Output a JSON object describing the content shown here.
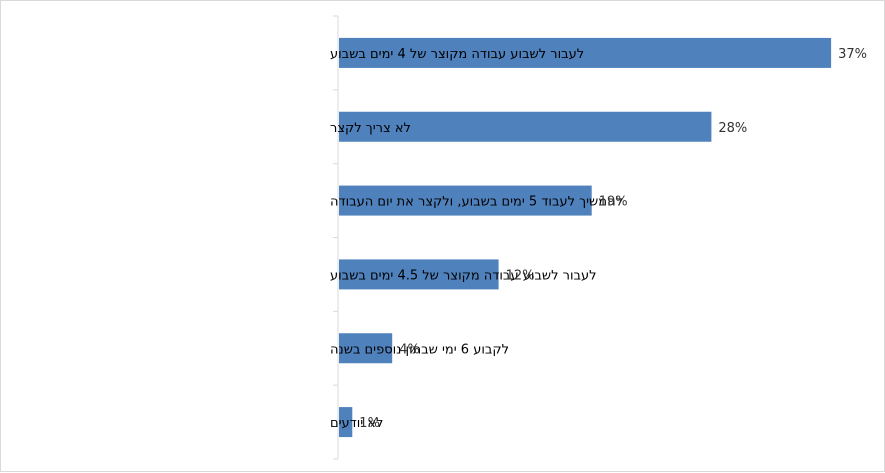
{
  "chart_data": {
    "type": "bar",
    "orientation": "horizontal",
    "categories": [
      "לעבור לשבוע עבודה מקוצר של 4 ימים בשבוע",
      "לא צריך לקצר",
      "להמשיך לעבוד 5 ימים בשבוע, ולקצר את יום העבודה",
      "לעבור לשבוע עבודה מקוצר של 4.5 ימים בשבוע",
      "לקבוע 6 ימי שבתון נוספים בשנה",
      "לא יודעים"
    ],
    "values": [
      37,
      28,
      19,
      12,
      4,
      1
    ],
    "value_labels": [
      "37%",
      "28%",
      "19%",
      "12%",
      "4%",
      "1%"
    ],
    "title": "",
    "xlabel": "",
    "ylabel": "",
    "xlim": [
      0,
      40
    ],
    "grid": false,
    "legend": "none",
    "bar_color": "#4f81bd",
    "axis_color": "#d9d9d9"
  }
}
